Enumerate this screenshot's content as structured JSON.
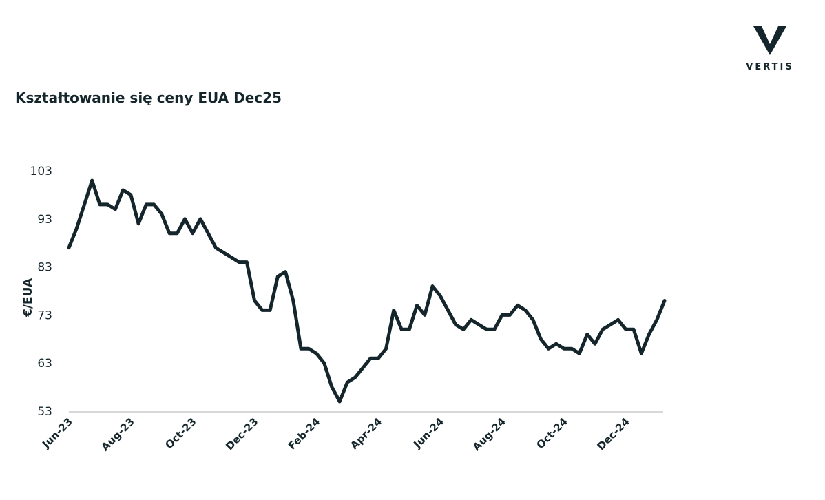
{
  "logo": "VERTIS",
  "chart_data": {
    "type": "line",
    "title": "Kształtowanie się ceny EUA Dec25",
    "y_label": "€/EUA",
    "categories": [
      "Jun-23",
      null,
      null,
      null,
      null,
      null,
      null,
      null,
      "Aug-23",
      null,
      null,
      null,
      null,
      null,
      null,
      null,
      "Oct-23",
      null,
      null,
      null,
      null,
      null,
      null,
      null,
      "Dec-23",
      null,
      null,
      null,
      null,
      null,
      null,
      null,
      "Feb-24",
      null,
      null,
      null,
      null,
      null,
      null,
      null,
      "Apr-24",
      null,
      null,
      null,
      null,
      null,
      null,
      null,
      "Jun-24",
      null,
      null,
      null,
      null,
      null,
      null,
      null,
      "Aug-24",
      null,
      null,
      null,
      null,
      null,
      null,
      null,
      "Oct-24",
      null,
      null,
      null,
      null,
      null,
      null,
      null,
      "Dec-24",
      null,
      null,
      null,
      null,
      null
    ],
    "series": [
      {
        "name": "EUA Dec25",
        "color": "#14262b",
        "values": [
          87,
          91,
          96,
          101,
          96,
          96,
          95,
          99,
          98,
          92,
          96,
          96,
          94,
          90,
          90,
          93,
          90,
          93,
          90,
          87,
          86,
          85,
          84,
          84,
          76,
          74,
          74,
          81,
          82,
          76,
          66,
          66,
          65,
          63,
          58,
          55,
          59,
          60,
          62,
          64,
          64,
          66,
          74,
          70,
          70,
          75,
          73,
          79,
          77,
          74,
          71,
          70,
          72,
          71,
          70,
          70,
          73,
          73,
          75,
          74,
          72,
          68,
          66,
          67,
          66,
          66,
          65,
          69,
          67,
          70,
          71,
          72,
          70,
          70,
          65,
          69,
          72,
          76
        ]
      }
    ],
    "ylim": [
      53,
      103
    ],
    "yticks": [
      53,
      63,
      73,
      83,
      93,
      103
    ],
    "grid": false
  }
}
